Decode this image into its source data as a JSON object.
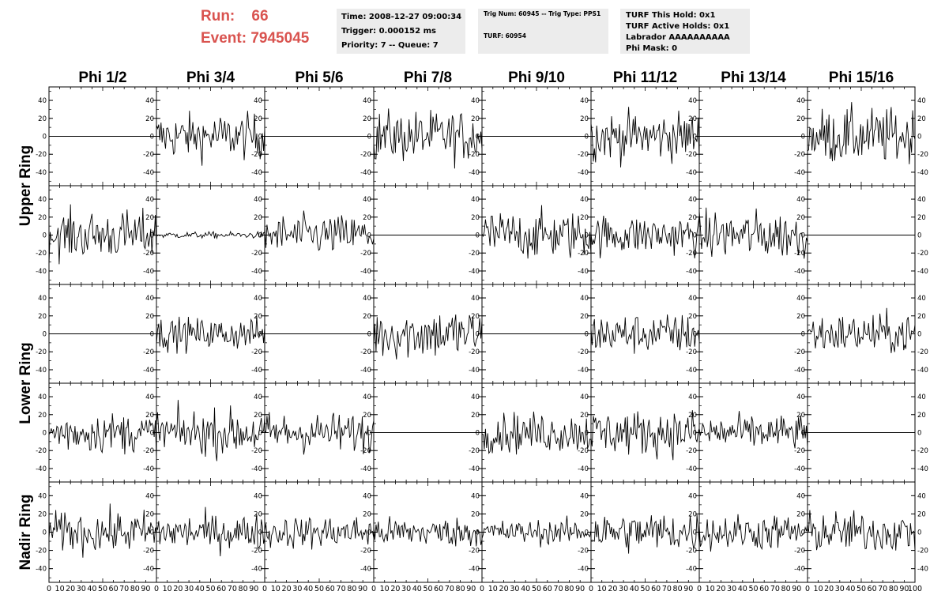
{
  "header": {
    "run_label": "Run:",
    "run_value": "66",
    "event_label": "Event:",
    "event_value": "7945045",
    "time_line": "Time: 2008-12-27 09:00:34",
    "trigger_line": "Trigger: 0.000152 ms",
    "priority_line": "Priority: 7 -- Queue: 7",
    "trig_num_line": "Trig Num: 60945 -- Trig Type: PPS1",
    "turf_line": "TURF: 60954",
    "turf_this_hold": "TURF This Hold: 0x1",
    "turf_active_holds": "TURF Active Holds: 0x1",
    "labrador": "Labrador AAAAAAAAAA",
    "phi_mask": "Phi Mask: 0"
  },
  "colors": {
    "run_text": "#d9534f",
    "box_bg": "#ececec",
    "trace": "#000000"
  },
  "chart_data": {
    "type": "line",
    "columns": [
      "Phi 1/2",
      "Phi 3/4",
      "Phi 5/6",
      "Phi 7/8",
      "Phi 9/10",
      "Phi 11/12",
      "Phi 13/14",
      "Phi 15/16"
    ],
    "row_groups": [
      {
        "label": "Upper Ring",
        "rows": [
          0,
          1
        ]
      },
      {
        "label": "Lower Ring",
        "rows": [
          2,
          3
        ]
      },
      {
        "label": "Nadir Ring",
        "rows": [
          4
        ]
      }
    ],
    "ylim": [
      -55,
      55
    ],
    "xlim": [
      0,
      100
    ],
    "y_ticks": [
      -40,
      -20,
      0,
      20,
      40
    ],
    "x_tick_labels": [
      "0",
      "10",
      "20",
      "30",
      "40",
      "50",
      "60",
      "70",
      "80",
      "90",
      "100"
    ],
    "samples_per_trace": 96,
    "trace_amplitude": [
      [
        0,
        28,
        0,
        32,
        0,
        30,
        0,
        35
      ],
      [
        30,
        4,
        25,
        0,
        30,
        25,
        30,
        0
      ],
      [
        0,
        20,
        0,
        32,
        0,
        25,
        0,
        25
      ],
      [
        25,
        28,
        25,
        0,
        25,
        28,
        22,
        0
      ],
      [
        25,
        22,
        20,
        18,
        15,
        25,
        22,
        25
      ]
    ]
  }
}
